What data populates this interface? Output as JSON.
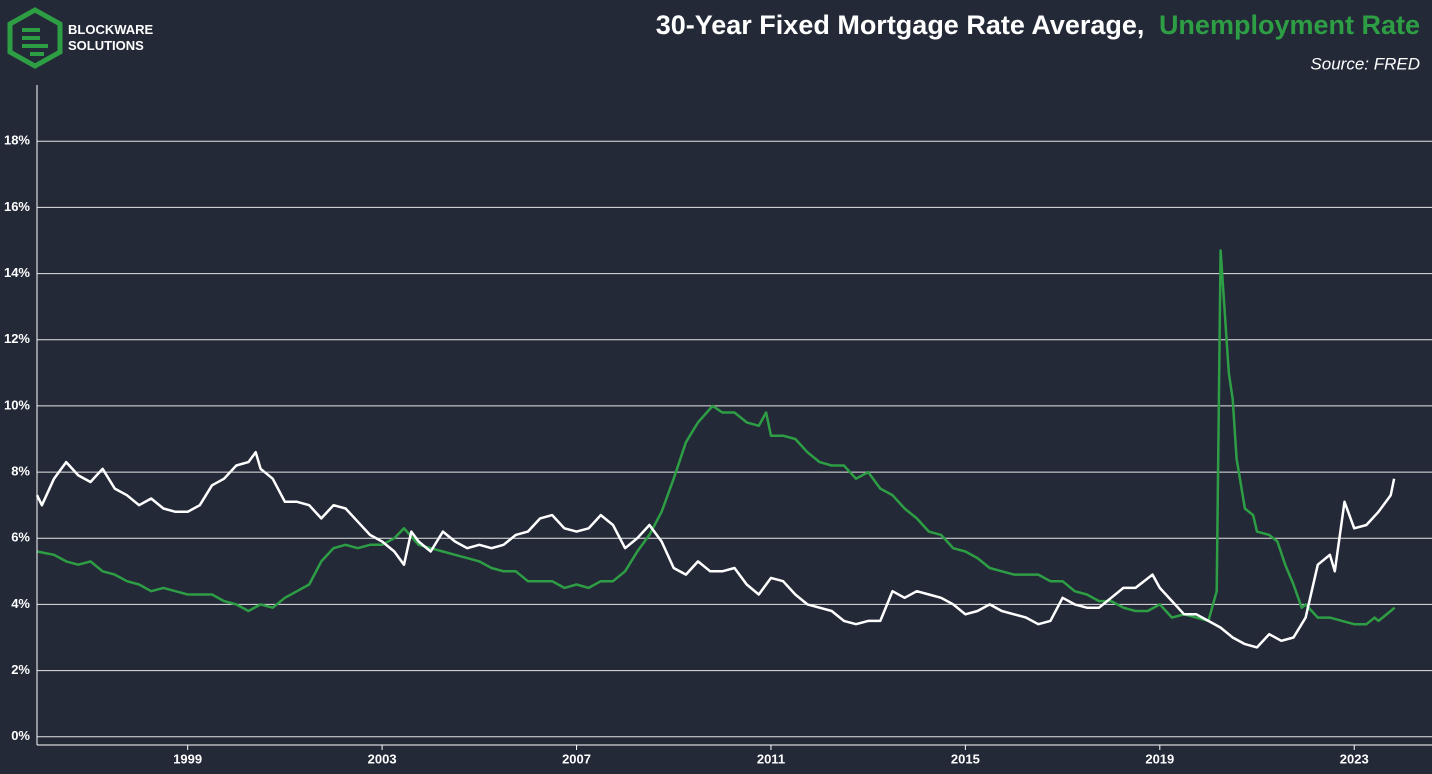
{
  "logo": {
    "line1": "BLOCKWARE",
    "line2": "SOLUTIONS"
  },
  "chart_data": {
    "type": "line",
    "title": [
      "30-Year Fixed Mortgage Rate Average,",
      "Unemployment Rate"
    ],
    "subtitle": "Source: FRED",
    "xlim": [
      1995.9,
      2024.6
    ],
    "xticks": [
      1999,
      2003,
      2007,
      2011,
      2015,
      2019,
      2023
    ],
    "ylim": [
      -0.25,
      19.7
    ],
    "yticks": [
      {
        "value": 0,
        "label": "0%"
      },
      {
        "value": 2,
        "label": "2%"
      },
      {
        "value": 4,
        "label": "4%"
      },
      {
        "value": 6,
        "label": "6%"
      },
      {
        "value": 8,
        "label": "8%"
      },
      {
        "value": 10,
        "label": "10%"
      },
      {
        "value": 12,
        "label": "12%"
      },
      {
        "value": 14,
        "label": "14%"
      },
      {
        "value": 16,
        "label": "16%"
      },
      {
        "value": 18,
        "label": "18%"
      }
    ],
    "grid": true,
    "series": [
      {
        "color": "#ffffff",
        "x": [
          1995.9,
          1996.0,
          1996.25,
          1996.5,
          1996.75,
          1997.0,
          1997.25,
          1997.5,
          1997.75,
          1998.0,
          1998.25,
          1998.5,
          1998.75,
          1999.0,
          1999.25,
          1999.5,
          1999.75,
          2000.0,
          2000.25,
          2000.4,
          2000.5,
          2000.75,
          2001.0,
          2001.25,
          2001.5,
          2001.75,
          2002.0,
          2002.25,
          2002.5,
          2002.75,
          2003.0,
          2003.25,
          2003.45,
          2003.6,
          2003.75,
          2004.0,
          2004.25,
          2004.5,
          2004.75,
          2005.0,
          2005.25,
          2005.5,
          2005.75,
          2006.0,
          2006.25,
          2006.5,
          2006.75,
          2007.0,
          2007.25,
          2007.5,
          2007.75,
          2008.0,
          2008.25,
          2008.5,
          2008.75,
          2009.0,
          2009.25,
          2009.5,
          2009.75,
          2010.0,
          2010.25,
          2010.5,
          2010.75,
          2011.0,
          2011.25,
          2011.5,
          2011.75,
          2012.0,
          2012.25,
          2012.5,
          2012.75,
          2013.0,
          2013.25,
          2013.5,
          2013.75,
          2014.0,
          2014.25,
          2014.5,
          2014.75,
          2015.0,
          2015.25,
          2015.5,
          2015.75,
          2016.0,
          2016.25,
          2016.5,
          2016.75,
          2017.0,
          2017.25,
          2017.5,
          2017.75,
          2018.0,
          2018.25,
          2018.5,
          2018.85,
          2019.0,
          2019.25,
          2019.5,
          2019.75,
          2020.0,
          2020.25,
          2020.5,
          2020.75,
          2021.0,
          2021.25,
          2021.5,
          2021.75,
          2022.0,
          2022.25,
          2022.5,
          2022.6,
          2022.8,
          2023.0,
          2023.25,
          2023.5,
          2023.75,
          2023.82
        ],
        "values": [
          7.3,
          7.0,
          7.8,
          8.3,
          7.9,
          7.7,
          8.1,
          7.5,
          7.3,
          7.0,
          7.2,
          6.9,
          6.8,
          6.8,
          7.0,
          7.6,
          7.8,
          8.2,
          8.3,
          8.6,
          8.1,
          7.8,
          7.1,
          7.1,
          7.0,
          6.6,
          7.0,
          6.9,
          6.5,
          6.1,
          5.9,
          5.6,
          5.2,
          6.2,
          5.9,
          5.6,
          6.2,
          5.9,
          5.7,
          5.8,
          5.7,
          5.8,
          6.1,
          6.2,
          6.6,
          6.7,
          6.3,
          6.2,
          6.3,
          6.7,
          6.4,
          5.7,
          6.0,
          6.4,
          5.9,
          5.1,
          4.9,
          5.3,
          5.0,
          5.0,
          5.1,
          4.6,
          4.3,
          4.8,
          4.7,
          4.3,
          4.0,
          3.9,
          3.8,
          3.5,
          3.4,
          3.5,
          3.5,
          4.4,
          4.2,
          4.4,
          4.3,
          4.2,
          4.0,
          3.7,
          3.8,
          4.0,
          3.8,
          3.7,
          3.6,
          3.4,
          3.5,
          4.2,
          4.0,
          3.9,
          3.9,
          4.2,
          4.5,
          4.5,
          4.9,
          4.5,
          4.1,
          3.7,
          3.7,
          3.5,
          3.3,
          3.0,
          2.8,
          2.7,
          3.1,
          2.9,
          3.0,
          3.6,
          5.2,
          5.5,
          5.0,
          7.1,
          6.3,
          6.4,
          6.8,
          7.3,
          7.8
        ]
      },
      {
        "color": "#2e9e45",
        "x": [
          1995.9,
          1996.25,
          1996.5,
          1996.75,
          1997.0,
          1997.25,
          1997.5,
          1997.75,
          1998.0,
          1998.25,
          1998.5,
          1998.75,
          1999.0,
          1999.25,
          1999.5,
          1999.75,
          2000.0,
          2000.25,
          2000.5,
          2000.75,
          2001.0,
          2001.25,
          2001.5,
          2001.75,
          2002.0,
          2002.25,
          2002.5,
          2002.75,
          2003.0,
          2003.25,
          2003.45,
          2003.75,
          2004.0,
          2004.25,
          2004.5,
          2004.75,
          2005.0,
          2005.25,
          2005.5,
          2005.75,
          2006.0,
          2006.25,
          2006.5,
          2006.75,
          2007.0,
          2007.25,
          2007.5,
          2007.75,
          2008.0,
          2008.25,
          2008.5,
          2008.75,
          2009.0,
          2009.25,
          2009.5,
          2009.8,
          2010.0,
          2010.25,
          2010.5,
          2010.75,
          2010.9,
          2011.0,
          2011.25,
          2011.5,
          2011.75,
          2012.0,
          2012.25,
          2012.5,
          2012.75,
          2013.0,
          2013.25,
          2013.5,
          2013.75,
          2014.0,
          2014.25,
          2014.5,
          2014.75,
          2015.0,
          2015.25,
          2015.5,
          2015.75,
          2016.0,
          2016.25,
          2016.5,
          2016.75,
          2017.0,
          2017.25,
          2017.5,
          2017.75,
          2018.0,
          2018.25,
          2018.5,
          2018.75,
          2019.0,
          2019.25,
          2019.5,
          2019.75,
          2020.0,
          2020.17,
          2020.25,
          2020.42,
          2020.5,
          2020.58,
          2020.75,
          2020.92,
          2021.0,
          2021.25,
          2021.42,
          2021.58,
          2021.75,
          2021.92,
          2022.0,
          2022.25,
          2022.5,
          2022.75,
          2023.0,
          2023.25,
          2023.42,
          2023.5,
          2023.75,
          2023.83
        ],
        "values": [
          5.6,
          5.5,
          5.3,
          5.2,
          5.3,
          5.0,
          4.9,
          4.7,
          4.6,
          4.4,
          4.5,
          4.4,
          4.3,
          4.3,
          4.3,
          4.1,
          4.0,
          3.8,
          4.0,
          3.9,
          4.2,
          4.4,
          4.6,
          5.3,
          5.7,
          5.8,
          5.7,
          5.8,
          5.8,
          6.0,
          6.3,
          5.8,
          5.7,
          5.6,
          5.5,
          5.4,
          5.3,
          5.1,
          5.0,
          5.0,
          4.7,
          4.7,
          4.7,
          4.5,
          4.6,
          4.5,
          4.7,
          4.7,
          5.0,
          5.6,
          6.1,
          6.8,
          7.8,
          8.9,
          9.5,
          10.0,
          9.8,
          9.8,
          9.5,
          9.4,
          9.8,
          9.1,
          9.1,
          9.0,
          8.6,
          8.3,
          8.2,
          8.2,
          7.8,
          8.0,
          7.5,
          7.3,
          6.9,
          6.6,
          6.2,
          6.1,
          5.7,
          5.6,
          5.4,
          5.1,
          5.0,
          4.9,
          4.9,
          4.9,
          4.7,
          4.7,
          4.4,
          4.3,
          4.1,
          4.1,
          3.9,
          3.8,
          3.8,
          4.0,
          3.6,
          3.7,
          3.6,
          3.5,
          4.4,
          14.7,
          11.0,
          10.2,
          8.4,
          6.9,
          6.7,
          6.2,
          6.1,
          5.9,
          5.2,
          4.6,
          3.9,
          4.0,
          3.6,
          3.6,
          3.5,
          3.4,
          3.4,
          3.6,
          3.5,
          3.8,
          3.9
        ]
      }
    ]
  }
}
